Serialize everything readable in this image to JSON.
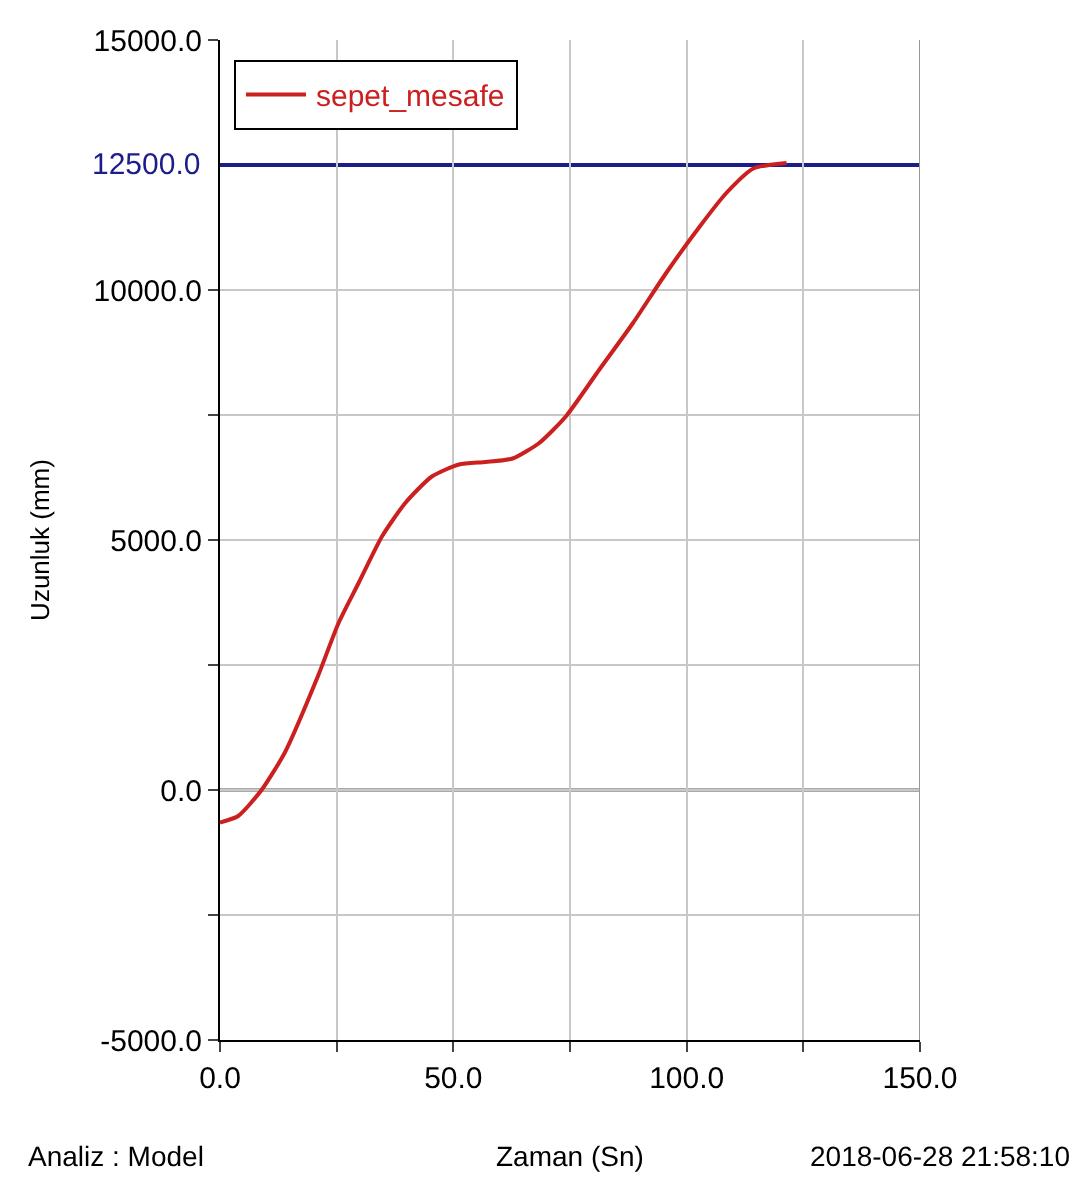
{
  "chart_data": {
    "type": "line",
    "xlabel": "Zaman (Sn)",
    "ylabel": "Uzunluk (mm)",
    "x": [
      0,
      3.9,
      8.9,
      13.9,
      21,
      25.4,
      29.7,
      34.7,
      39.7,
      45.4,
      51.2,
      56.9,
      62.7,
      68.4,
      74.1,
      81.3,
      88.5,
      95.6,
      102.8,
      108.5,
      114.3,
      121.4
    ],
    "series": [
      {
        "name": "sepet_mesafe",
        "color": "#cc1f1f",
        "values": [
          -650,
          -520,
          0,
          750,
          2280,
          3340,
          4140,
          5070,
          5740,
          6270,
          6510,
          6560,
          6630,
          6940,
          7470,
          8410,
          9340,
          10340,
          11270,
          11940,
          12430,
          12540
        ]
      }
    ],
    "xlim": [
      0,
      150
    ],
    "xticks": [
      {
        "value": 0,
        "label": "0.0"
      },
      {
        "value": 25,
        "label": null
      },
      {
        "value": 50,
        "label": "50.0"
      },
      {
        "value": 75,
        "label": null
      },
      {
        "value": 100,
        "label": "100.0"
      },
      {
        "value": 125,
        "label": null
      },
      {
        "value": 150,
        "label": "150.0"
      }
    ],
    "ylim": [
      -5000,
      15000
    ],
    "yticks": [
      {
        "value": -5000,
        "label": "-5000.0"
      },
      {
        "value": -2500,
        "label": null
      },
      {
        "value": 0,
        "label": "0.0"
      },
      {
        "value": 2500,
        "label": null
      },
      {
        "value": 5000,
        "label": "5000.0"
      },
      {
        "value": 7500,
        "label": null
      },
      {
        "value": 10000,
        "label": "10000.0"
      },
      {
        "value": 15000,
        "label": "15000.0"
      }
    ],
    "ref_lines": [
      {
        "axis": "y",
        "value": 12500,
        "label": "12500.0",
        "color": "#1c1c8c"
      },
      {
        "axis": "y",
        "value": 0,
        "color": "#555555"
      }
    ],
    "annotations": [
      "Analiz : Model",
      "2018-06-28 21:58:10"
    ],
    "grid": true,
    "legend": "top left",
    "marker": "none",
    "line_style": "solid"
  }
}
